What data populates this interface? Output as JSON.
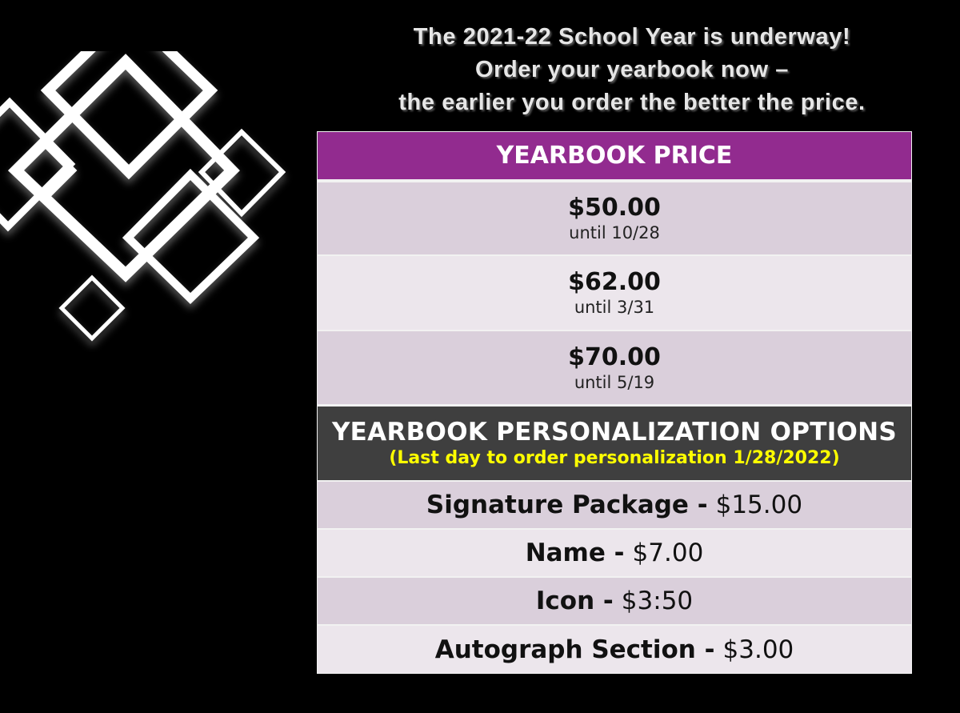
{
  "headline": {
    "line1": "The 2021-22 School Year is underway!",
    "line2": "Order your yearbook now –",
    "line3": "the earlier you order the better the price."
  },
  "price_table": {
    "header": "YEARBOOK PRICE",
    "tiers": [
      {
        "price": "$50.00",
        "deadline": "until 10/28"
      },
      {
        "price": "$62.00",
        "deadline": "until 3/31"
      },
      {
        "price": "$70.00",
        "deadline": "until 5/19"
      }
    ]
  },
  "personalization": {
    "header": "YEARBOOK PERSONALIZATION OPTIONS",
    "note": "(Last day to order personalization 1/28/2022)",
    "options": [
      {
        "name": "Signature Package  -",
        "price": "$15.00"
      },
      {
        "name": "Name -",
        "price": "$7.00"
      },
      {
        "name": "Icon -",
        "price": "$3:50"
      },
      {
        "name": "Autograph Section -",
        "price": "$3.00"
      }
    ]
  },
  "colors": {
    "header_purple": "#922b8f",
    "header_dark": "#3f3f3f",
    "note_yellow": "#ffff00",
    "row_a": "#dacfdb",
    "row_b": "#ece6ec"
  }
}
